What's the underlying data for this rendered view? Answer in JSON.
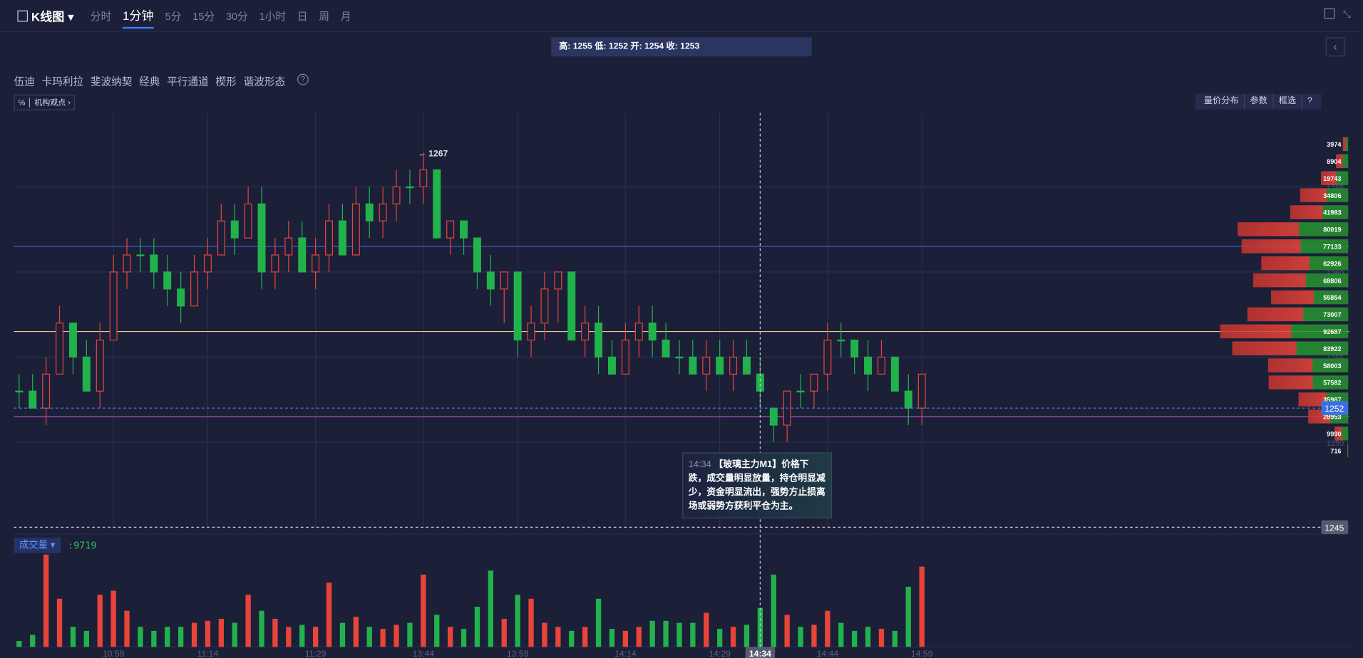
{
  "toolbar": {
    "title": "K线图",
    "periods": [
      "分时",
      "1分钟",
      "5分",
      "15分",
      "30分",
      "1小时",
      "日",
      "周",
      "月"
    ]
  },
  "ohlc_header": "高: 1255 低: 1252 开: 1254 收: 1253",
  "drawing_tools": [
    "伍迪",
    "卡玛利拉",
    "斐波纳契",
    "经典",
    "平行通道",
    "楔形",
    "谐波形态"
  ],
  "help": "?",
  "badge": "机构观点",
  "right_tools": [
    "量价分布",
    "参数",
    "框选"
  ],
  "tooltip": "【玻璃主力M1】价格下跌，成交量明显放量，持仓明显减少，资金明显流出，强势方止损离场或弱势方获利平仓为主。",
  "chart_data": {
    "type": "candlestick",
    "categories": [
      null,
      null,
      null,
      null,
      null,
      null,
      null,
      "10:59",
      null,
      null,
      null,
      null,
      null,
      null,
      "11:14",
      null,
      null,
      null,
      null,
      null,
      null,
      null,
      "11:29",
      null,
      null,
      null,
      null,
      null,
      null,
      null,
      "13:44",
      null,
      null,
      null,
      null,
      null,
      null,
      "13:59",
      null,
      null,
      null,
      null,
      null,
      null,
      null,
      "14:14",
      null,
      null,
      null,
      null,
      null,
      null,
      "14:29",
      null,
      null,
      "14:34",
      null,
      null,
      null,
      null,
      "14:44",
      null,
      null,
      null,
      null,
      null,
      null,
      "14:59"
    ],
    "open": [
      1253,
      1253,
      1252,
      1254,
      1257,
      1255,
      1253,
      1256,
      1260,
      1261,
      1261,
      1260,
      1259,
      1258,
      1260,
      1261,
      1263,
      1262,
      1264,
      1260,
      1261,
      1262,
      1260,
      1261,
      1263,
      1261,
      1264,
      1263,
      1264,
      1265,
      1265,
      1266,
      1262,
      1263,
      1262,
      1260,
      1259,
      1260,
      1256,
      1257,
      1259,
      1260,
      1256,
      1257,
      1255,
      1254,
      1256,
      1257,
      1256,
      1255,
      1255,
      1254,
      1255,
      1254,
      1255,
      1254,
      1252,
      1251,
      1253,
      1253,
      1254,
      1256,
      1256,
      1255,
      1254,
      1255,
      1253,
      1252
    ],
    "high": [
      1254,
      1254,
      1255,
      1258,
      1257,
      1256,
      1257,
      1261,
      1262,
      1262,
      1262,
      1261,
      1260,
      1261,
      1262,
      1264,
      1264,
      1265,
      1265,
      1262,
      1263,
      1263,
      1262,
      1264,
      1264,
      1265,
      1265,
      1265,
      1266,
      1266,
      1267,
      1266,
      1263,
      1263,
      1262,
      1261,
      1260,
      1260,
      1258,
      1260,
      1260,
      1260,
      1258,
      1258,
      1256,
      1257,
      1258,
      1258,
      1257,
      1256,
      1256,
      1256,
      1256,
      1256,
      1256,
      1255,
      1252,
      1253,
      1254,
      1254,
      1257,
      1257,
      1256,
      1256,
      1256,
      1255,
      1254,
      1254
    ],
    "low": [
      1252,
      1252,
      1251,
      1254,
      1254,
      1253,
      1252,
      1256,
      1259,
      1260,
      1259,
      1258,
      1257,
      1258,
      1259,
      1261,
      1261,
      1262,
      1259,
      1259,
      1260,
      1260,
      1259,
      1260,
      1261,
      1261,
      1262,
      1262,
      1263,
      1264,
      1264,
      1262,
      1261,
      1261,
      1259,
      1258,
      1257,
      1255,
      1255,
      1256,
      1257,
      1256,
      1255,
      1254,
      1254,
      1254,
      1255,
      1255,
      1255,
      1254,
      1254,
      1253,
      1254,
      1253,
      1254,
      1252,
      1250,
      1250,
      1252,
      1252,
      1253,
      1255,
      1254,
      1253,
      1254,
      1253,
      1251,
      1251
    ],
    "close": [
      1253,
      1252,
      1254,
      1257,
      1255,
      1253,
      1256,
      1260,
      1261,
      1261,
      1260,
      1259,
      1258,
      1260,
      1261,
      1263,
      1262,
      1264,
      1260,
      1261,
      1262,
      1260,
      1261,
      1263,
      1261,
      1264,
      1263,
      1264,
      1265,
      1265,
      1266,
      1262,
      1263,
      1262,
      1260,
      1259,
      1260,
      1256,
      1257,
      1259,
      1260,
      1256,
      1257,
      1255,
      1254,
      1256,
      1257,
      1256,
      1255,
      1255,
      1254,
      1255,
      1254,
      1255,
      1254,
      1253,
      1251,
      1253,
      1253,
      1254,
      1256,
      1256,
      1255,
      1254,
      1255,
      1253,
      1252,
      1254
    ],
    "up_color": "#e8443a",
    "down_color": "#22b24c",
    "ylim": [
      1244.5,
      1269.5
    ],
    "yticks": [
      1250,
      1255,
      1260,
      1265
    ],
    "grid": true,
    "lines": [
      {
        "value": 1261.5,
        "color": "#4a62d0"
      },
      {
        "value": 1256.5,
        "color": "#e9c88a"
      },
      {
        "value": 1251.5,
        "color": "#b45cc9"
      }
    ],
    "current_price": 1252,
    "cursor_price": 1245,
    "cursor_index": 55,
    "high_mark": 1267,
    "volume": {
      "label": "成交量",
      "ylim": [
        0,
        24000
      ],
      "values": [
        1500,
        3000,
        23000,
        12000,
        5000,
        4000,
        13000,
        14000,
        9000,
        5000,
        4000,
        5000,
        5000,
        6000,
        6500,
        7000,
        6000,
        13000,
        9000,
        7000,
        5000,
        5500,
        5000,
        16000,
        6000,
        7500,
        5000,
        4500,
        5500,
        6000,
        18000,
        8000,
        5000,
        4500,
        10000,
        19000,
        7000,
        13000,
        12000,
        6000,
        5000,
        4000,
        5000,
        12000,
        4500,
        4000,
        5000,
        6500,
        6500,
        6000,
        6000,
        8500,
        4500,
        5000,
        5500,
        9719,
        18000,
        8000,
        5000,
        5500,
        9000,
        6000,
        4000,
        5000,
        4500,
        4000,
        15000,
        20000
      ]
    },
    "profile": {
      "xlim": [
        0,
        100000
      ],
      "prices": [
        1267,
        1266,
        1265,
        1264,
        1263,
        1262,
        1261,
        1260,
        1259,
        1258,
        1257,
        1256,
        1255,
        1254,
        1253,
        1252,
        1251,
        1250,
        1249
      ],
      "values": [
        3974,
        8904,
        19743,
        34806,
        41983,
        80019,
        77133,
        62926,
        68806,
        55854,
        73007,
        92687,
        83922,
        58003,
        57582,
        35987,
        28953,
        9990,
        716
      ]
    }
  }
}
